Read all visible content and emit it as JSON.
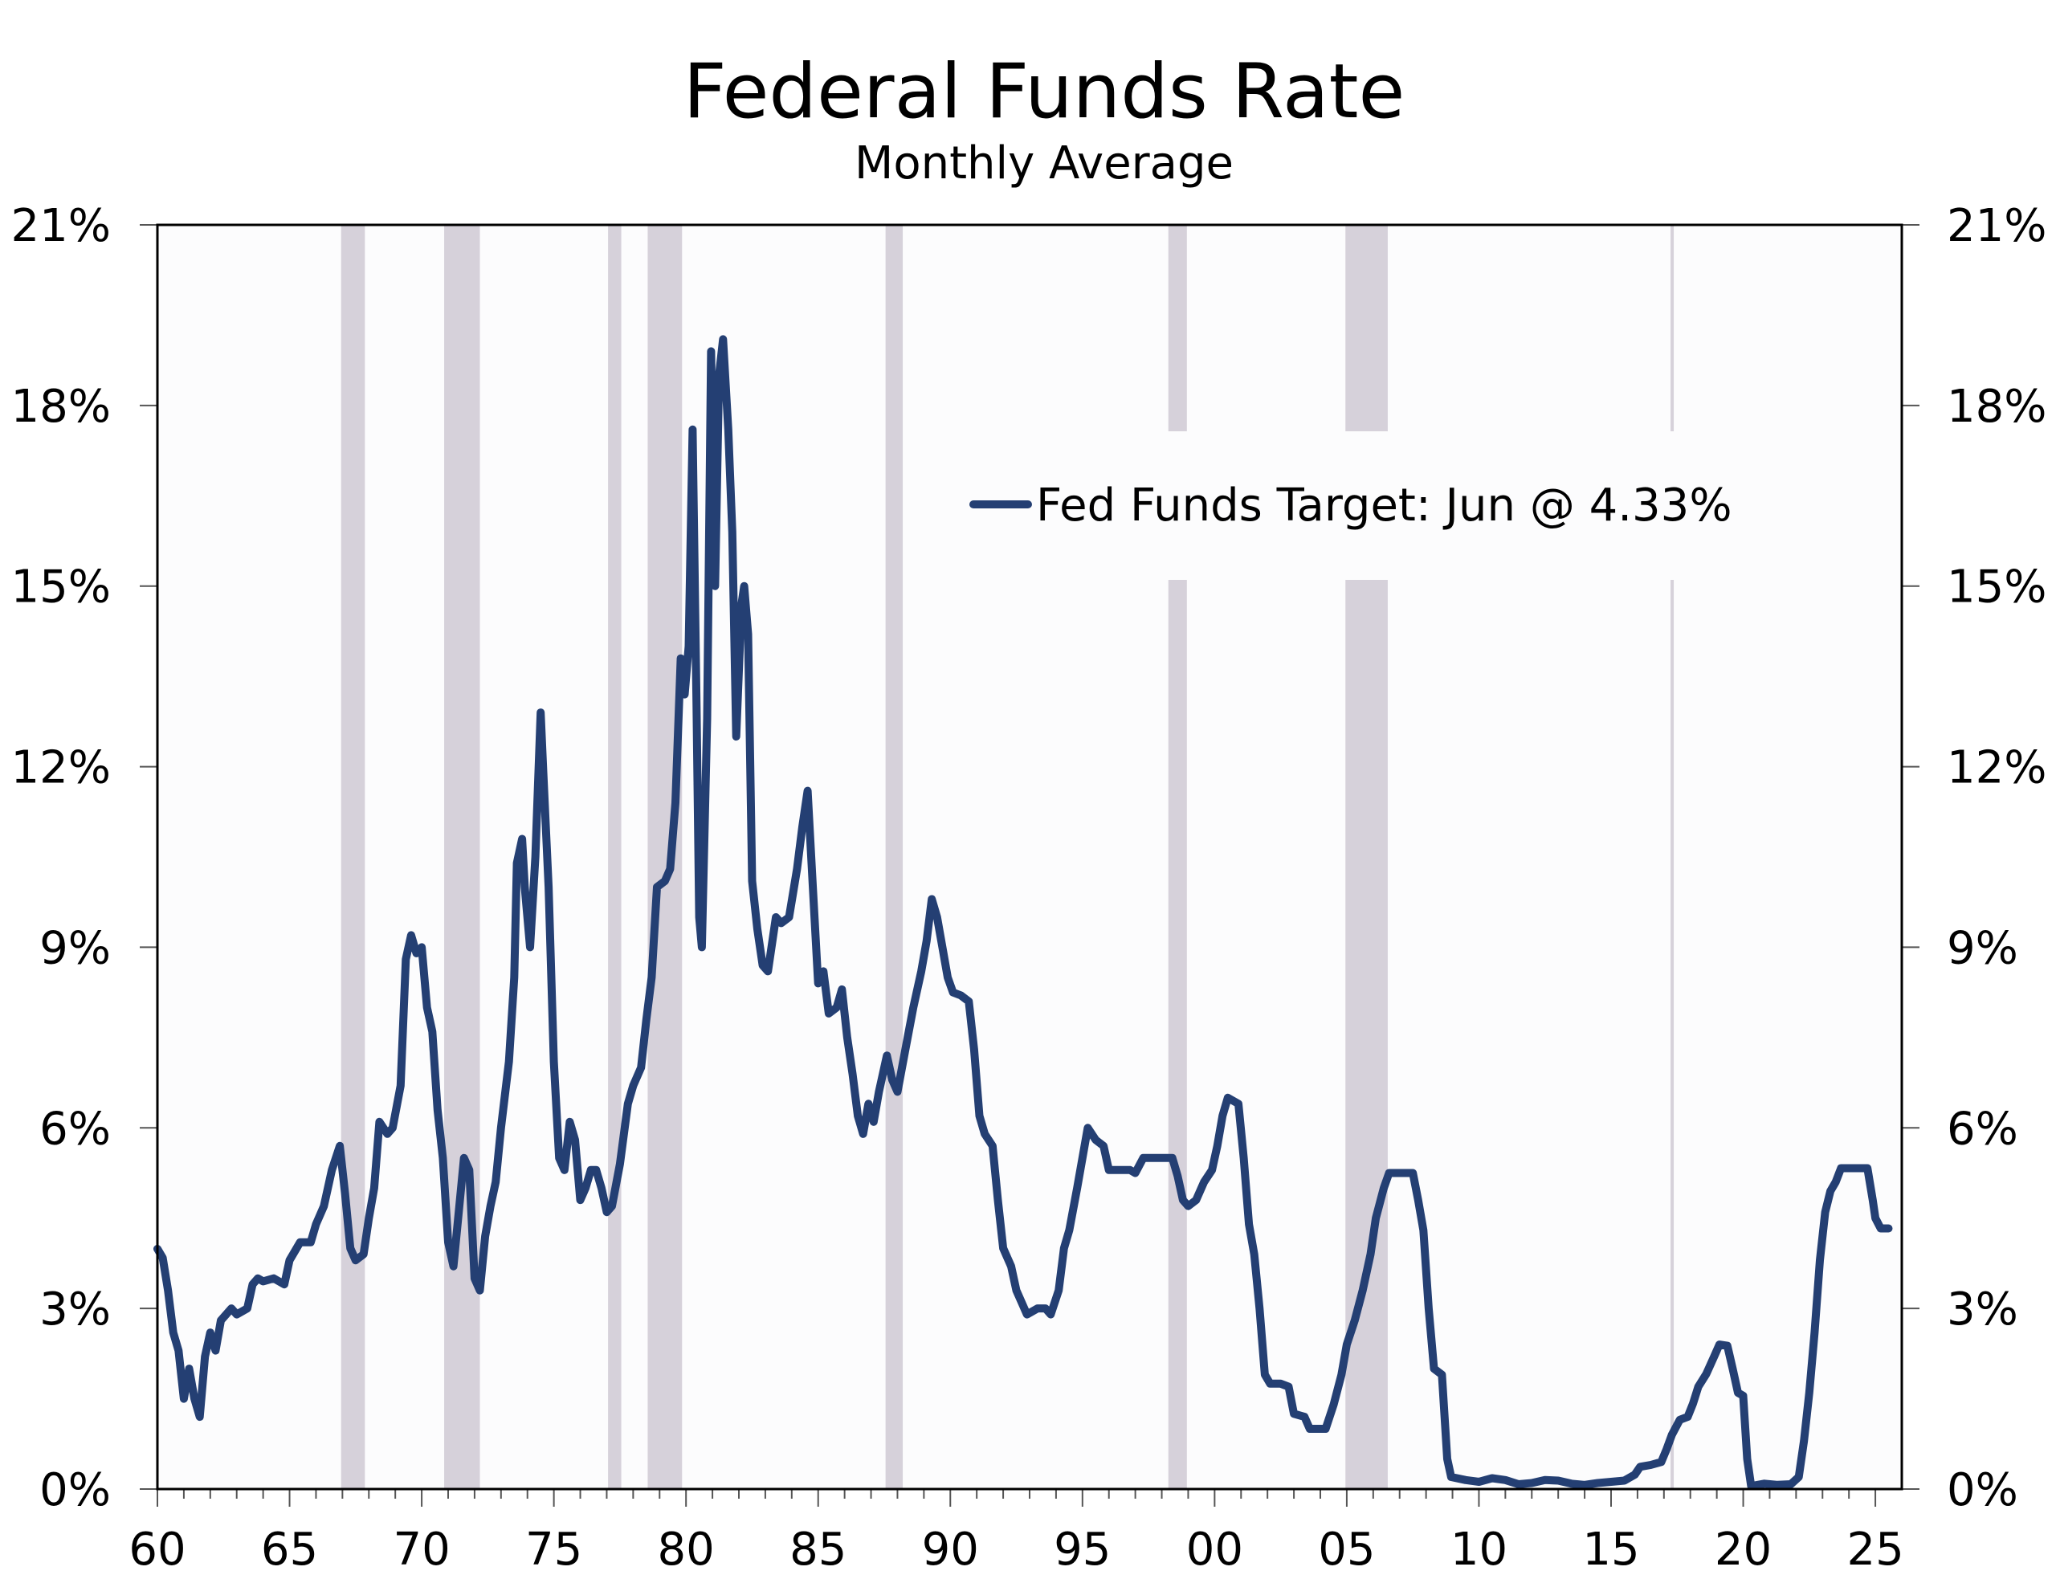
{
  "chart_data": {
    "type": "line",
    "title": "Federal Funds Rate",
    "subtitle": "Monthly Average",
    "xlabel": "",
    "ylabel": "",
    "x_range": [
      1960,
      2026
    ],
    "ylim": [
      0,
      21
    ],
    "y_ticks": [
      {
        "value": 0,
        "label": "0%"
      },
      {
        "value": 3,
        "label": "3%"
      },
      {
        "value": 6,
        "label": "6%"
      },
      {
        "value": 9,
        "label": "9%"
      },
      {
        "value": 12,
        "label": "12%"
      },
      {
        "value": 15,
        "label": "15%"
      },
      {
        "value": 18,
        "label": "18%"
      },
      {
        "value": 21,
        "label": "21%"
      }
    ],
    "x_ticks": [
      {
        "value": 1960,
        "label": "60"
      },
      {
        "value": 1965,
        "label": "65"
      },
      {
        "value": 1970,
        "label": "70"
      },
      {
        "value": 1975,
        "label": "75"
      },
      {
        "value": 1980,
        "label": "80"
      },
      {
        "value": 1985,
        "label": "85"
      },
      {
        "value": 1990,
        "label": "90"
      },
      {
        "value": 1995,
        "label": "95"
      },
      {
        "value": 2000,
        "label": "00"
      },
      {
        "value": 2005,
        "label": "05"
      },
      {
        "value": 2010,
        "label": "10"
      },
      {
        "value": 2015,
        "label": "15"
      },
      {
        "value": 2020,
        "label": "20"
      },
      {
        "value": 2025,
        "label": "25"
      }
    ],
    "grid": false,
    "legend_position": "upper-right",
    "shaded_periods": [
      [
        1966.95,
        1967.85
      ],
      [
        1970.85,
        1972.2
      ],
      [
        1977.05,
        1977.55
      ],
      [
        1978.55,
        1979.85
      ],
      [
        1987.55,
        1988.2
      ],
      [
        1998.25,
        1998.95
      ],
      [
        2004.95,
        2006.55
      ],
      [
        2017.25,
        2017.35
      ]
    ],
    "series": [
      {
        "name": "Fed Funds Target: Jun @ 4.33%",
        "color": "#243F73",
        "points": [
          [
            1960.0,
            3.99
          ],
          [
            1960.2,
            3.84
          ],
          [
            1960.4,
            3.3
          ],
          [
            1960.6,
            2.6
          ],
          [
            1960.8,
            2.3
          ],
          [
            1961.0,
            1.5
          ],
          [
            1961.2,
            2.0
          ],
          [
            1961.4,
            1.5
          ],
          [
            1961.6,
            1.2
          ],
          [
            1961.8,
            2.2
          ],
          [
            1962.0,
            2.6
          ],
          [
            1962.2,
            2.3
          ],
          [
            1962.4,
            2.8
          ],
          [
            1962.6,
            2.9
          ],
          [
            1962.8,
            3.0
          ],
          [
            1963.0,
            2.9
          ],
          [
            1963.4,
            3.0
          ],
          [
            1963.6,
            3.4
          ],
          [
            1963.8,
            3.5
          ],
          [
            1964.0,
            3.45
          ],
          [
            1964.4,
            3.5
          ],
          [
            1964.8,
            3.4
          ],
          [
            1965.0,
            3.8
          ],
          [
            1965.4,
            4.1
          ],
          [
            1965.8,
            4.1
          ],
          [
            1966.0,
            4.4
          ],
          [
            1966.3,
            4.7
          ],
          [
            1966.6,
            5.3
          ],
          [
            1966.9,
            5.7
          ],
          [
            1967.1,
            4.9
          ],
          [
            1967.3,
            4.0
          ],
          [
            1967.5,
            3.8
          ],
          [
            1967.8,
            3.9
          ],
          [
            1968.0,
            4.5
          ],
          [
            1968.2,
            5.0
          ],
          [
            1968.4,
            6.1
          ],
          [
            1968.7,
            5.9
          ],
          [
            1968.9,
            6.0
          ],
          [
            1969.2,
            6.7
          ],
          [
            1969.4,
            8.8
          ],
          [
            1969.6,
            9.2
          ],
          [
            1969.8,
            8.9
          ],
          [
            1970.0,
            9.0
          ],
          [
            1970.2,
            8.0
          ],
          [
            1970.4,
            7.6
          ],
          [
            1970.6,
            6.3
          ],
          [
            1970.8,
            5.5
          ],
          [
            1971.0,
            4.1
          ],
          [
            1971.2,
            3.7
          ],
          [
            1971.4,
            4.6
          ],
          [
            1971.6,
            5.5
          ],
          [
            1971.8,
            5.3
          ],
          [
            1972.0,
            3.5
          ],
          [
            1972.2,
            3.3
          ],
          [
            1972.4,
            4.2
          ],
          [
            1972.6,
            4.7
          ],
          [
            1972.8,
            5.1
          ],
          [
            1973.0,
            6.0
          ],
          [
            1973.3,
            7.1
          ],
          [
            1973.5,
            8.5
          ],
          [
            1973.6,
            10.4
          ],
          [
            1973.8,
            10.8
          ],
          [
            1973.9,
            10.0
          ],
          [
            1974.1,
            9.0
          ],
          [
            1974.3,
            10.5
          ],
          [
            1974.5,
            12.9
          ],
          [
            1974.6,
            11.9
          ],
          [
            1974.8,
            10.0
          ],
          [
            1975.0,
            7.1
          ],
          [
            1975.2,
            5.5
          ],
          [
            1975.4,
            5.3
          ],
          [
            1975.6,
            6.1
          ],
          [
            1975.8,
            5.8
          ],
          [
            1976.0,
            4.8
          ],
          [
            1976.2,
            5.0
          ],
          [
            1976.4,
            5.3
          ],
          [
            1976.6,
            5.3
          ],
          [
            1976.8,
            5.0
          ],
          [
            1977.0,
            4.6
          ],
          [
            1977.2,
            4.7
          ],
          [
            1977.5,
            5.4
          ],
          [
            1977.8,
            6.4
          ],
          [
            1978.0,
            6.7
          ],
          [
            1978.3,
            7.0
          ],
          [
            1978.5,
            7.8
          ],
          [
            1978.7,
            8.5
          ],
          [
            1978.9,
            10.0
          ],
          [
            1979.2,
            10.1
          ],
          [
            1979.4,
            10.3
          ],
          [
            1979.6,
            11.4
          ],
          [
            1979.8,
            13.8
          ],
          [
            1979.95,
            13.2
          ],
          [
            1980.1,
            14.0
          ],
          [
            1980.25,
            17.6
          ],
          [
            1980.4,
            13.0
          ],
          [
            1980.5,
            9.5
          ],
          [
            1980.6,
            9.0
          ],
          [
            1980.8,
            12.8
          ],
          [
            1980.95,
            18.9
          ],
          [
            1981.1,
            15.0
          ],
          [
            1981.25,
            18.5
          ],
          [
            1981.4,
            19.1
          ],
          [
            1981.6,
            17.6
          ],
          [
            1981.75,
            15.9
          ],
          [
            1981.9,
            12.5
          ],
          [
            1982.1,
            14.7
          ],
          [
            1982.2,
            15.0
          ],
          [
            1982.35,
            14.2
          ],
          [
            1982.5,
            10.1
          ],
          [
            1982.7,
            9.3
          ],
          [
            1982.9,
            8.7
          ],
          [
            1983.1,
            8.6
          ],
          [
            1983.4,
            9.5
          ],
          [
            1983.6,
            9.4
          ],
          [
            1983.9,
            9.5
          ],
          [
            1984.2,
            10.3
          ],
          [
            1984.4,
            11.0
          ],
          [
            1984.6,
            11.6
          ],
          [
            1984.8,
            10.0
          ],
          [
            1985.0,
            8.4
          ],
          [
            1985.2,
            8.6
          ],
          [
            1985.4,
            7.9
          ],
          [
            1985.7,
            8.0
          ],
          [
            1985.9,
            8.3
          ],
          [
            1986.1,
            7.5
          ],
          [
            1986.3,
            6.9
          ],
          [
            1986.5,
            6.2
          ],
          [
            1986.7,
            5.9
          ],
          [
            1986.9,
            6.4
          ],
          [
            1987.1,
            6.1
          ],
          [
            1987.3,
            6.6
          ],
          [
            1987.6,
            7.2
          ],
          [
            1987.8,
            6.8
          ],
          [
            1988.0,
            6.6
          ],
          [
            1988.3,
            7.3
          ],
          [
            1988.6,
            8.0
          ],
          [
            1988.9,
            8.6
          ],
          [
            1989.1,
            9.1
          ],
          [
            1989.3,
            9.8
          ],
          [
            1989.5,
            9.5
          ],
          [
            1989.7,
            9.0
          ],
          [
            1989.9,
            8.5
          ],
          [
            1990.1,
            8.25
          ],
          [
            1990.4,
            8.2
          ],
          [
            1990.7,
            8.1
          ],
          [
            1990.9,
            7.3
          ],
          [
            1991.1,
            6.2
          ],
          [
            1991.3,
            5.9
          ],
          [
            1991.6,
            5.7
          ],
          [
            1991.8,
            4.8
          ],
          [
            1992.0,
            4.0
          ],
          [
            1992.3,
            3.7
          ],
          [
            1992.5,
            3.3
          ],
          [
            1992.7,
            3.1
          ],
          [
            1992.9,
            2.9
          ],
          [
            1993.3,
            3.0
          ],
          [
            1993.6,
            3.0
          ],
          [
            1993.8,
            2.9
          ],
          [
            1994.1,
            3.3
          ],
          [
            1994.3,
            4.0
          ],
          [
            1994.5,
            4.3
          ],
          [
            1994.8,
            5.0
          ],
          [
            1995.0,
            5.5
          ],
          [
            1995.2,
            6.0
          ],
          [
            1995.5,
            5.8
          ],
          [
            1995.8,
            5.7
          ],
          [
            1996.0,
            5.3
          ],
          [
            1996.4,
            5.3
          ],
          [
            1996.8,
            5.3
          ],
          [
            1997.0,
            5.25
          ],
          [
            1997.3,
            5.5
          ],
          [
            1997.7,
            5.5
          ],
          [
            1998.0,
            5.5
          ],
          [
            1998.4,
            5.5
          ],
          [
            1998.6,
            5.2
          ],
          [
            1998.8,
            4.8
          ],
          [
            1999.0,
            4.7
          ],
          [
            1999.3,
            4.8
          ],
          [
            1999.6,
            5.1
          ],
          [
            1999.9,
            5.3
          ],
          [
            2000.1,
            5.7
          ],
          [
            2000.3,
            6.2
          ],
          [
            2000.5,
            6.5
          ],
          [
            2000.9,
            6.4
          ],
          [
            2001.1,
            5.5
          ],
          [
            2001.3,
            4.4
          ],
          [
            2001.5,
            3.9
          ],
          [
            2001.7,
            3.0
          ],
          [
            2001.9,
            1.9
          ],
          [
            2002.1,
            1.75
          ],
          [
            2002.5,
            1.75
          ],
          [
            2002.8,
            1.7
          ],
          [
            2003.0,
            1.25
          ],
          [
            2003.4,
            1.2
          ],
          [
            2003.6,
            1.0
          ],
          [
            2003.9,
            1.0
          ],
          [
            2004.2,
            1.0
          ],
          [
            2004.5,
            1.4
          ],
          [
            2004.8,
            1.9
          ],
          [
            2005.0,
            2.4
          ],
          [
            2005.3,
            2.8
          ],
          [
            2005.6,
            3.3
          ],
          [
            2005.9,
            3.9
          ],
          [
            2006.1,
            4.5
          ],
          [
            2006.4,
            5.0
          ],
          [
            2006.6,
            5.25
          ],
          [
            2007.0,
            5.25
          ],
          [
            2007.5,
            5.25
          ],
          [
            2007.7,
            4.8
          ],
          [
            2007.9,
            4.3
          ],
          [
            2008.1,
            3.0
          ],
          [
            2008.3,
            2.0
          ],
          [
            2008.6,
            1.9
          ],
          [
            2008.8,
            0.5
          ],
          [
            2008.95,
            0.2
          ],
          [
            2009.5,
            0.15
          ],
          [
            2010.0,
            0.12
          ],
          [
            2010.5,
            0.18
          ],
          [
            2011.0,
            0.15
          ],
          [
            2011.5,
            0.08
          ],
          [
            2012.0,
            0.1
          ],
          [
            2012.5,
            0.15
          ],
          [
            2013.0,
            0.14
          ],
          [
            2013.5,
            0.09
          ],
          [
            2014.0,
            0.07
          ],
          [
            2014.5,
            0.1
          ],
          [
            2015.0,
            0.12
          ],
          [
            2015.5,
            0.14
          ],
          [
            2015.9,
            0.24
          ],
          [
            2016.1,
            0.37
          ],
          [
            2016.5,
            0.4
          ],
          [
            2016.9,
            0.45
          ],
          [
            2017.1,
            0.66
          ],
          [
            2017.3,
            0.9
          ],
          [
            2017.6,
            1.15
          ],
          [
            2017.9,
            1.2
          ],
          [
            2018.1,
            1.42
          ],
          [
            2018.3,
            1.7
          ],
          [
            2018.6,
            1.91
          ],
          [
            2018.9,
            2.2
          ],
          [
            2019.1,
            2.4
          ],
          [
            2019.4,
            2.38
          ],
          [
            2019.6,
            2.0
          ],
          [
            2019.8,
            1.6
          ],
          [
            2020.0,
            1.55
          ],
          [
            2020.15,
            0.5
          ],
          [
            2020.3,
            0.05
          ],
          [
            2020.8,
            0.09
          ],
          [
            2021.3,
            0.07
          ],
          [
            2021.8,
            0.08
          ],
          [
            2022.1,
            0.2
          ],
          [
            2022.3,
            0.8
          ],
          [
            2022.5,
            1.6
          ],
          [
            2022.7,
            2.6
          ],
          [
            2022.9,
            3.8
          ],
          [
            2023.1,
            4.6
          ],
          [
            2023.3,
            4.95
          ],
          [
            2023.5,
            5.1
          ],
          [
            2023.7,
            5.33
          ],
          [
            2024.0,
            5.33
          ],
          [
            2024.4,
            5.33
          ],
          [
            2024.7,
            5.33
          ],
          [
            2024.9,
            4.8
          ],
          [
            2025.0,
            4.5
          ],
          [
            2025.2,
            4.33
          ],
          [
            2025.5,
            4.33
          ]
        ]
      }
    ]
  }
}
